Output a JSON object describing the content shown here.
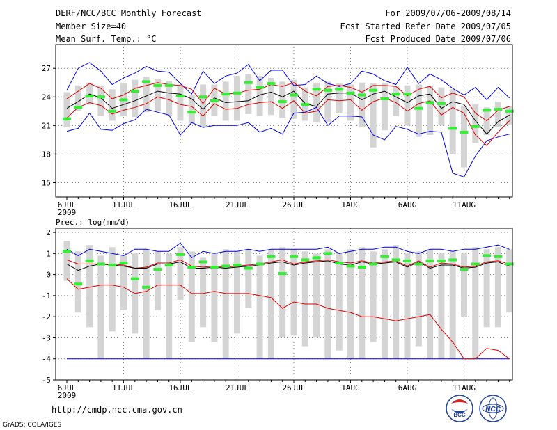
{
  "header": {
    "title": "DERF/NCC/BCC Monthly Forecast",
    "member_size": "Member Size=40",
    "variable": "Mean Surf. Temp.: °C",
    "period": "For 2009/07/06-2009/08/14",
    "started": "Fcst Started Refer Date 2009/07/05",
    "produced": "Fcst Produced Date 2009/07/06"
  },
  "footer": {
    "url": "http://cmdp.ncc.cma.gov.cn",
    "credit": "GrADS: COLA/IGES",
    "logo1_text": "BCC",
    "logo2_text": "NCC"
  },
  "colors": {
    "box": "#d4d4d4",
    "median": "#000000",
    "inner": "#dd0000",
    "outer": "#0000dd",
    "obs": "#33ee33",
    "grid": "#888888"
  },
  "chart_data": [
    {
      "type": "box-band",
      "title": "",
      "ylabel": "Mean Surf. Temp.: °C",
      "xlabel": "",
      "ylim": [
        13.5,
        29.5
      ],
      "yticks": [
        15,
        18,
        21,
        24,
        27
      ],
      "x_tick_labels": [
        "6JUL",
        "11JUL",
        "16JUL",
        "21JUL",
        "26JUL",
        "1AUG",
        "6AUG",
        "11AUG"
      ],
      "x_year_label": "2009",
      "days": 40,
      "median": [
        22.8,
        23.5,
        24.3,
        23.9,
        22.8,
        23.2,
        23.6,
        24.1,
        24.6,
        24.4,
        24.3,
        23.8,
        22.7,
        23.9,
        23.4,
        23.5,
        23.6,
        24.2,
        24.5,
        24.0,
        24.6,
        23.3,
        23.0,
        24.3,
        24.4,
        24.4,
        23.7,
        24.3,
        24.6,
        24.0,
        23.4,
        24.1,
        24.3,
        22.8,
        23.5,
        23.2,
        21.5,
        20.1,
        21.4,
        22.1
      ],
      "inner_upper": [
        23.8,
        24.6,
        25.4,
        24.9,
        23.8,
        24.2,
        24.9,
        25.2,
        25.5,
        25.3,
        25.2,
        24.8,
        23.3,
        24.9,
        24.3,
        24.4,
        24.7,
        24.8,
        25.3,
        25.1,
        25.5,
        24.6,
        24.1,
        25.1,
        25.2,
        25.0,
        24.5,
        25.2,
        25.2,
        25.1,
        24.1,
        24.8,
        25.1,
        23.9,
        24.4,
        24.0,
        22.3,
        21.5,
        22.6,
        23.0
      ],
      "inner_lower": [
        21.8,
        22.9,
        23.4,
        23.1,
        22.2,
        22.6,
        22.9,
        23.3,
        24.0,
        23.7,
        23.2,
        23.0,
        22.0,
        23.3,
        22.7,
        22.8,
        23.2,
        23.4,
        23.5,
        22.8,
        23.6,
        22.3,
        22.5,
        23.7,
        23.6,
        23.7,
        22.6,
        23.5,
        23.9,
        23.4,
        22.5,
        23.3,
        23.6,
        22.1,
        22.9,
        22.3,
        20.0,
        18.9,
        20.3,
        21.5
      ],
      "outer_upper": [
        24.7,
        27.0,
        27.6,
        26.7,
        25.3,
        26.0,
        26.5,
        27.2,
        26.7,
        26.6,
        25.4,
        24.3,
        26.7,
        25.4,
        26.2,
        26.5,
        27.4,
        25.7,
        26.8,
        26.8,
        25.2,
        25.3,
        26.2,
        25.4,
        25.1,
        25.4,
        26.7,
        26.4,
        25.7,
        25.3,
        27.1,
        25.4,
        26.4,
        25.8,
        24.9,
        24.2,
        25.0,
        23.7,
        25.0,
        23.9
      ],
      "outer_lower": [
        20.4,
        20.7,
        22.3,
        20.6,
        20.5,
        21.2,
        21.6,
        22.7,
        22.4,
        22.1,
        20.0,
        21.3,
        20.8,
        21.0,
        21.0,
        21.0,
        21.3,
        20.3,
        20.7,
        20.1,
        22.3,
        22.4,
        22.9,
        21.0,
        22.0,
        22.0,
        21.9,
        20.0,
        19.5,
        20.9,
        20.6,
        20.1,
        20.4,
        20.3,
        16.0,
        15.6,
        17.8,
        19.4,
        19.8,
        20.1
      ],
      "box_upper": [
        24.5,
        25.2,
        25.5,
        25.2,
        24.8,
        25.4,
        25.8,
        26.1,
        25.9,
        25.7,
        25.3,
        24.2,
        25.3,
        25.3,
        25.6,
        26.2,
        26.4,
        26.2,
        26.0,
        25.6,
        25.8,
        25.0,
        25.4,
        25.6,
        25.4,
        25.3,
        25.5,
        25.4,
        25.4,
        25.1,
        25.2,
        25.3,
        25.2,
        25.0,
        24.8,
        23.1,
        23.2,
        22.9,
        23.5,
        23.0
      ],
      "box_lower": [
        20.8,
        22.5,
        23.2,
        22.0,
        21.5,
        22.0,
        21.9,
        22.4,
        22.5,
        22.0,
        21.5,
        21.2,
        20.8,
        22.0,
        21.5,
        21.5,
        22.2,
        22.0,
        22.1,
        21.8,
        21.7,
        21.5,
        21.3,
        21.4,
        22.3,
        21.5,
        20.8,
        18.7,
        20.5,
        22.0,
        21.0,
        19.8,
        20.0,
        21.0,
        18.0,
        16.6,
        19.2,
        20.0,
        20.8,
        21.1
      ],
      "observed": [
        21.7,
        22.9,
        24.1,
        24.0,
        22.5,
        23.7,
        24.6,
        25.6,
        25.2,
        25.2,
        24.1,
        22.4,
        24.0,
        23.6,
        24.3,
        24.4,
        25.5,
        25.0,
        25.4,
        23.5,
        24.2,
        23.2,
        24.8,
        24.7,
        24.8,
        24.4,
        24.2,
        24.7,
        23.8,
        24.3,
        24.3,
        22.8,
        23.4,
        23.3,
        20.7,
        20.3,
        20.9,
        22.6,
        22.7,
        22.5
      ]
    },
    {
      "type": "box-band",
      "title": "",
      "ylabel": "Prec.: log(mm/d)",
      "xlabel": "",
      "ylim": [
        -5,
        2.2
      ],
      "yticks": [
        -5,
        -4,
        -3,
        -2,
        -1,
        0,
        1,
        2
      ],
      "x_tick_labels": [
        "6JUL",
        "11JUL",
        "16JUL",
        "21JUL",
        "26JUL",
        "1AUG",
        "6AUG",
        "11AUG"
      ],
      "x_year_label": "2009",
      "days": 40,
      "median": [
        0.5,
        0.2,
        0.4,
        0.5,
        0.45,
        0.4,
        0.3,
        0.3,
        0.5,
        0.5,
        0.6,
        0.3,
        0.3,
        0.35,
        0.3,
        0.35,
        0.4,
        0.45,
        0.55,
        0.6,
        0.45,
        0.55,
        0.6,
        0.65,
        0.5,
        0.45,
        0.6,
        0.5,
        0.55,
        0.6,
        0.35,
        0.6,
        0.3,
        0.45,
        0.45,
        0.3,
        0.35,
        0.55,
        0.6,
        0.4
      ],
      "inner_upper": [
        0.7,
        0.5,
        0.5,
        0.5,
        0.5,
        0.45,
        0.3,
        0.35,
        0.55,
        0.55,
        0.7,
        0.4,
        0.35,
        0.4,
        0.35,
        0.4,
        0.45,
        0.5,
        0.6,
        0.7,
        0.5,
        0.6,
        0.65,
        0.7,
        0.6,
        0.55,
        0.65,
        0.55,
        0.6,
        0.65,
        0.4,
        0.65,
        0.35,
        0.55,
        0.5,
        0.35,
        0.4,
        0.6,
        0.65,
        0.5
      ],
      "inner_lower": [
        -0.2,
        -0.7,
        -0.6,
        -0.5,
        -0.5,
        -0.6,
        -0.9,
        -0.8,
        -0.5,
        -0.5,
        -0.5,
        -0.9,
        -0.9,
        -0.8,
        -0.9,
        -0.9,
        -0.9,
        -1.0,
        -1.1,
        -1.6,
        -1.3,
        -1.4,
        -1.4,
        -1.6,
        -1.7,
        -1.8,
        -2.0,
        -2.0,
        -2.1,
        -2.2,
        -2.1,
        -2.0,
        -1.9,
        -2.6,
        -3.2,
        -4.0,
        -4.0,
        -3.5,
        -3.6,
        -4.0
      ],
      "outer_upper": [
        1.2,
        0.9,
        1.2,
        1.1,
        1.0,
        0.9,
        1.2,
        1.2,
        1.1,
        1.1,
        1.5,
        0.8,
        1.1,
        1.0,
        1.1,
        1.1,
        1.2,
        1.1,
        1.2,
        1.2,
        1.2,
        1.2,
        1.2,
        1.3,
        1.0,
        1.1,
        1.2,
        1.2,
        1.3,
        1.3,
        1.1,
        1.0,
        1.2,
        1.2,
        1.1,
        1.2,
        1.2,
        1.3,
        1.4,
        1.2
      ],
      "outer_lower": [
        -4,
        -4,
        -4,
        -4,
        -4,
        -4,
        -4,
        -4,
        -4,
        -4,
        -4,
        -4,
        -4,
        -4,
        -4,
        -4,
        -4,
        -4,
        -4,
        -4,
        -4,
        -4,
        -4,
        -4,
        -4,
        -4,
        -4,
        -4,
        -4,
        -4,
        -4,
        -4,
        -4,
        -4,
        -4,
        -4,
        -4,
        -4,
        -4,
        -4
      ],
      "box_upper": [
        1.6,
        1.1,
        1.4,
        0.9,
        1.3,
        0.9,
        1.0,
        1.2,
        1.1,
        1.0,
        1.3,
        1.1,
        0.8,
        1.0,
        1.2,
        1.1,
        1.2,
        0.9,
        1.2,
        1.3,
        1.2,
        1.1,
        1.0,
        1.2,
        1.0,
        1.2,
        1.3,
        1.1,
        1.2,
        1.4,
        1.0,
        1.1,
        1.2,
        1.0,
        1.1,
        1.0,
        1.3,
        1.2,
        1.3,
        1.2
      ],
      "box_lower": [
        -0.3,
        -1.8,
        -2.5,
        -4,
        -2.7,
        -1.7,
        -2.8,
        -4,
        -1.7,
        -4,
        -1.2,
        -3.2,
        -2.5,
        -3.2,
        -4,
        -2.8,
        -1.6,
        -4,
        -4,
        -3.0,
        -2.9,
        -3.4,
        -3.0,
        -4,
        -3.6,
        -4,
        -4,
        -3.2,
        -4,
        -4,
        -4,
        -3.4,
        -4,
        -4,
        -4,
        -2.0,
        -4,
        -2.5,
        -2.5,
        -1.8
      ],
      "observed": [
        1.1,
        -0.45,
        0.65,
        0.5,
        0.45,
        0.55,
        -0.2,
        -0.6,
        0.25,
        0.45,
        0.95,
        0.35,
        0.6,
        0.35,
        0.4,
        0.45,
        0.3,
        0.5,
        0.85,
        0.05,
        0.85,
        0.7,
        0.8,
        1.0,
        0.55,
        0.4,
        0.35,
        0.5,
        0.85,
        0.7,
        0.65,
        0.5,
        0.65,
        0.65,
        0.7,
        0.25,
        0.5,
        0.9,
        0.85,
        0.5
      ]
    }
  ]
}
